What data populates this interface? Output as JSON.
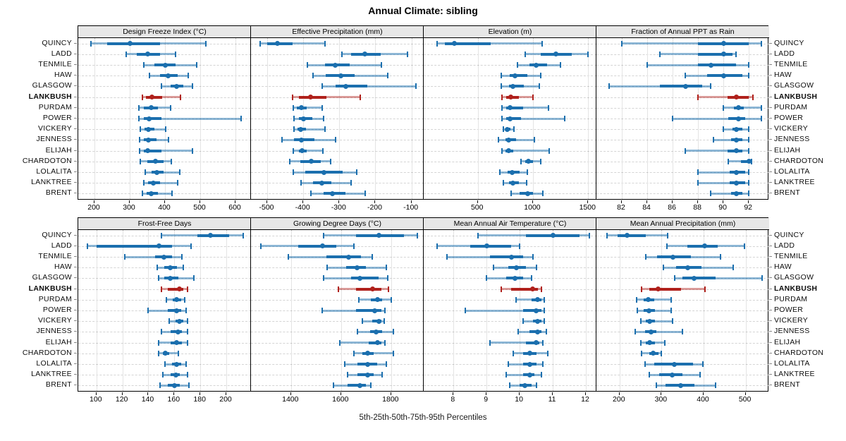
{
  "title": "Annual Climate: sibling",
  "caption": "5th-25th-50th-75th-95th Percentiles",
  "colors": {
    "normal_main": "#1b6fae",
    "normal_outer": "rgba(27,111,174,0.5)",
    "highlight_main": "#b0211c",
    "highlight_outer": "rgba(176,33,28,0.45)",
    "grid": "#d4d4d4",
    "strip_bg": "#e7e7e7",
    "border": "#000000"
  },
  "chart_data": {
    "type": "scatter",
    "variant": "multi-panel percentile dot plot (whiskers = 5th-95th, thick bar = 25th-75th, dot = median)",
    "title": "Annual Climate: sibling",
    "caption": "5th-25th-50th-75th-95th Percentiles",
    "legend_position": "none",
    "grid": "dashed horizontal per station, dotted vertical per tick",
    "stations": [
      "QUINCY",
      "LADD",
      "TENMILE",
      "HAW",
      "GLASGOW",
      "LANKBUSH",
      "PURDAM",
      "POWER",
      "VICKERY",
      "JENNESS",
      "ELIJAH",
      "CHARDOTON",
      "LOLALITA",
      "LANKTREE",
      "BRENT"
    ],
    "highlight": "LANKBUSH",
    "percentiles": [
      5,
      25,
      50,
      75,
      95
    ],
    "panels_per_row": 4,
    "panels": [
      {
        "title": "Design Freeze Index (°C)",
        "ticks": [
          200,
          300,
          400,
          500,
          600
        ],
        "xlim": [
          154,
          644
        ],
        "series": [
          [
            190,
            235,
            300,
            385,
            515
          ],
          [
            290,
            320,
            350,
            385,
            430
          ],
          [
            340,
            370,
            400,
            430,
            490
          ],
          [
            355,
            385,
            408,
            435,
            465
          ],
          [
            390,
            415,
            432,
            452,
            477
          ],
          [
            335,
            345,
            362,
            392,
            443
          ],
          [
            325,
            340,
            360,
            380,
            415
          ],
          [
            325,
            340,
            355,
            390,
            615
          ],
          [
            330,
            342,
            352,
            370,
            402
          ],
          [
            327,
            340,
            353,
            375,
            410
          ],
          [
            327,
            340,
            350,
            390,
            478
          ],
          [
            330,
            350,
            373,
            395,
            418
          ],
          [
            345,
            362,
            377,
            395,
            442
          ],
          [
            340,
            352,
            367,
            385,
            435
          ],
          [
            335,
            347,
            360,
            380,
            420
          ]
        ]
      },
      {
        "title": "Effective Precipitation (mm)",
        "ticks": [
          -500,
          -400,
          -300,
          -200,
          -100
        ],
        "xlim": [
          -545,
          -66
        ],
        "series": [
          [
            -520,
            -500,
            -472,
            -430,
            -340
          ],
          [
            -293,
            -268,
            -230,
            -185,
            -110
          ],
          [
            -388,
            -340,
            -312,
            -272,
            -183
          ],
          [
            -373,
            -338,
            -295,
            -258,
            -165
          ],
          [
            -348,
            -310,
            -282,
            -222,
            -88
          ],
          [
            -430,
            -412,
            -380,
            -335,
            -242
          ],
          [
            -427,
            -417,
            -405,
            -390,
            -347
          ],
          [
            -425,
            -412,
            -400,
            -375,
            -343
          ],
          [
            -425,
            -415,
            -407,
            -392,
            -340
          ],
          [
            -458,
            -425,
            -405,
            -370,
            -310
          ],
          [
            -427,
            -413,
            -404,
            -390,
            -345
          ],
          [
            -437,
            -408,
            -378,
            -352,
            -325
          ],
          [
            -428,
            -395,
            -343,
            -290,
            -252
          ],
          [
            -407,
            -372,
            -348,
            -322,
            -268
          ],
          [
            -378,
            -343,
            -320,
            -283,
            -228
          ]
        ]
      },
      {
        "title": "Elevation (m)",
        "ticks": [
          500,
          1000,
          1500
        ],
        "xlim": [
          10,
          1575
        ],
        "series": [
          [
            130,
            200,
            290,
            620,
            1080
          ],
          [
            930,
            1070,
            1210,
            1350,
            1500
          ],
          [
            860,
            970,
            1030,
            1130,
            1250
          ],
          [
            710,
            790,
            840,
            950,
            1070
          ],
          [
            710,
            780,
            820,
            920,
            1060
          ],
          [
            720,
            760,
            800,
            870,
            1000
          ],
          [
            720,
            760,
            790,
            910,
            1140
          ],
          [
            720,
            760,
            790,
            890,
            1290
          ],
          [
            730,
            750,
            770,
            795,
            830
          ],
          [
            690,
            750,
            780,
            850,
            1010
          ],
          [
            720,
            750,
            780,
            820,
            1150
          ],
          [
            890,
            930,
            960,
            1000,
            1070
          ],
          [
            700,
            770,
            810,
            880,
            950
          ],
          [
            730,
            780,
            815,
            870,
            940
          ],
          [
            800,
            880,
            950,
            1000,
            1090
          ]
        ]
      },
      {
        "title": "Fraction of Annual PPT as Rain",
        "ticks": [
          82,
          84,
          86,
          88,
          90,
          92
        ],
        "xlim": [
          80,
          93.6
        ],
        "series": [
          [
            82,
            88,
            90,
            92,
            93
          ],
          [
            85,
            88,
            90,
            90.7,
            91
          ],
          [
            84,
            88,
            89,
            91,
            92
          ],
          [
            87,
            88.7,
            90,
            91.5,
            92
          ],
          [
            81,
            85,
            87,
            88.3,
            89
          ],
          [
            88,
            90.3,
            91,
            92,
            92.3
          ],
          [
            90,
            90.8,
            91.2,
            91.6,
            93
          ],
          [
            86,
            90.4,
            91.2,
            91.7,
            93
          ],
          [
            90,
            90.7,
            91,
            91.5,
            92
          ],
          [
            89.2,
            90.6,
            91,
            91.5,
            92
          ],
          [
            87,
            90.3,
            91,
            91.5,
            92
          ],
          [
            90.4,
            91.4,
            92,
            92.1,
            92.2
          ],
          [
            88,
            90.5,
            91,
            91.7,
            92
          ],
          [
            88,
            90.5,
            91,
            91.7,
            92
          ],
          [
            89,
            90.6,
            91,
            91.5,
            92
          ]
        ]
      },
      {
        "title": "Frost-Free Days",
        "ticks": [
          100,
          120,
          140,
          160,
          180,
          200
        ],
        "xlim": [
          86,
          219
        ],
        "series": [
          [
            150,
            178,
            188,
            202,
            213
          ],
          [
            93,
            100,
            148,
            158,
            173
          ],
          [
            122,
            145,
            152,
            158,
            166
          ],
          [
            147,
            152,
            157,
            162,
            167
          ],
          [
            148,
            152,
            157,
            163,
            175
          ],
          [
            150,
            155,
            164,
            167,
            170
          ],
          [
            154,
            159,
            162,
            165,
            168
          ],
          [
            140,
            155,
            162,
            165,
            169
          ],
          [
            156,
            161,
            164,
            167,
            170
          ],
          [
            150,
            157,
            163,
            166,
            170
          ],
          [
            148,
            157,
            162,
            166,
            170
          ],
          [
            148,
            151,
            153,
            156,
            163
          ],
          [
            153,
            158,
            162,
            165,
            169
          ],
          [
            151,
            157,
            161,
            164,
            170
          ],
          [
            149,
            155,
            160,
            164,
            171
          ]
        ]
      },
      {
        "title": "Growing Degree Days (°C)",
        "ticks": [
          1400,
          1600,
          1800
        ],
        "xlim": [
          1240,
          1930
        ],
        "series": [
          [
            1530,
            1660,
            1750,
            1850,
            1905
          ],
          [
            1280,
            1430,
            1525,
            1580,
            1650
          ],
          [
            1390,
            1540,
            1630,
            1680,
            1725
          ],
          [
            1545,
            1620,
            1665,
            1700,
            1780
          ],
          [
            1530,
            1640,
            1675,
            1750,
            1785
          ],
          [
            1590,
            1660,
            1725,
            1760,
            1790
          ],
          [
            1670,
            1720,
            1745,
            1765,
            1800
          ],
          [
            1525,
            1660,
            1735,
            1760,
            1775
          ],
          [
            1685,
            1725,
            1750,
            1762,
            1772
          ],
          [
            1665,
            1715,
            1740,
            1765,
            1810
          ],
          [
            1595,
            1710,
            1745,
            1762,
            1775
          ],
          [
            1650,
            1685,
            1705,
            1730,
            1810
          ],
          [
            1615,
            1665,
            1705,
            1745,
            1780
          ],
          [
            1625,
            1665,
            1705,
            1730,
            1765
          ],
          [
            1570,
            1625,
            1675,
            1700,
            1720
          ]
        ]
      },
      {
        "title": "Mean Annual Air Temperature (°C)",
        "ticks": [
          8,
          9,
          10,
          11,
          12
        ],
        "xlim": [
          7.1,
          12.32
        ],
        "series": [
          [
            8.75,
            10.2,
            11.0,
            11.8,
            12.1
          ],
          [
            7.5,
            8.5,
            9.0,
            9.75,
            10.0
          ],
          [
            7.8,
            9.1,
            9.75,
            10.1,
            10.4
          ],
          [
            9.2,
            9.65,
            9.9,
            10.2,
            10.5
          ],
          [
            9.0,
            9.6,
            9.85,
            10.1,
            10.35
          ],
          [
            9.45,
            9.75,
            10.4,
            10.55,
            10.65
          ],
          [
            9.9,
            10.35,
            10.55,
            10.65,
            10.75
          ],
          [
            8.35,
            10.1,
            10.5,
            10.65,
            10.75
          ],
          [
            10.1,
            10.4,
            10.55,
            10.65,
            10.75
          ],
          [
            9.95,
            10.3,
            10.55,
            10.65,
            10.8
          ],
          [
            9.1,
            10.2,
            10.5,
            10.6,
            10.7
          ],
          [
            9.8,
            10.1,
            10.3,
            10.5,
            10.85
          ],
          [
            9.65,
            10.1,
            10.3,
            10.5,
            10.7
          ],
          [
            9.6,
            10.1,
            10.3,
            10.45,
            10.65
          ],
          [
            9.7,
            10.0,
            10.15,
            10.35,
            10.5
          ]
        ]
      },
      {
        "title": "Mean Annual Precipitation (mm)",
        "ticks": [
          200,
          300,
          400,
          500
        ],
        "xlim": [
          145,
          556
        ],
        "series": [
          [
            170,
            195,
            218,
            262,
            315
          ],
          [
            312,
            362,
            403,
            433,
            498
          ],
          [
            262,
            290,
            327,
            370,
            440
          ],
          [
            305,
            335,
            362,
            395,
            470
          ],
          [
            332,
            350,
            378,
            428,
            540
          ],
          [
            253,
            270,
            292,
            347,
            403
          ],
          [
            240,
            258,
            268,
            283,
            322
          ],
          [
            243,
            258,
            270,
            285,
            322
          ],
          [
            250,
            262,
            272,
            285,
            327
          ],
          [
            238,
            260,
            275,
            288,
            350
          ],
          [
            250,
            262,
            272,
            285,
            308
          ],
          [
            252,
            270,
            280,
            292,
            300
          ],
          [
            260,
            282,
            330,
            375,
            398
          ],
          [
            270,
            295,
            325,
            350,
            392
          ],
          [
            287,
            310,
            345,
            378,
            428
          ]
        ]
      }
    ]
  }
}
